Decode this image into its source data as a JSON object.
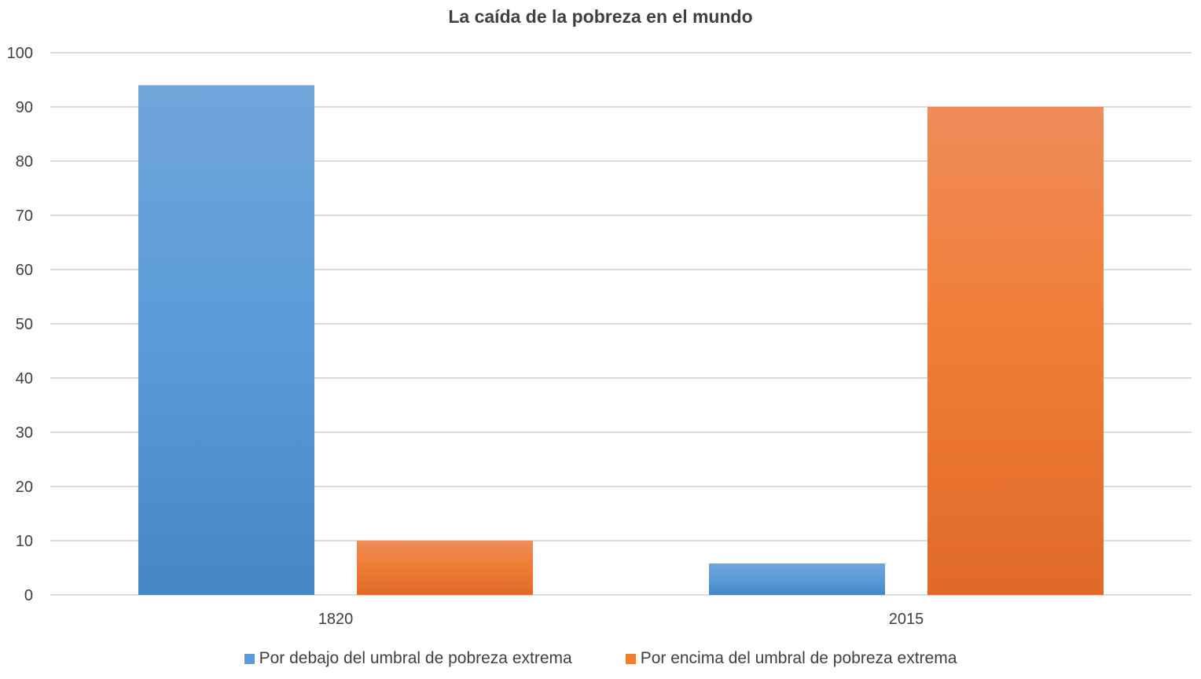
{
  "chart_data": {
    "type": "bar",
    "title": "La caída de la pobreza en el mundo",
    "categories": [
      "1820",
      "2015"
    ],
    "series": [
      {
        "name": "Por debajo del umbral de pobreza extrema",
        "values": [
          94,
          5.8
        ],
        "color": "#5b9bd5"
      },
      {
        "name": "Por encima del umbral de pobreza extrema",
        "values": [
          10,
          90
        ],
        "color": "#ed7d31"
      }
    ],
    "xlabel": "",
    "ylabel": "",
    "ylim": [
      0,
      100
    ],
    "yticks": [
      "0",
      "10",
      "20",
      "30",
      "40",
      "50",
      "60",
      "70",
      "80",
      "90",
      "100"
    ],
    "grid": true,
    "legend": "bottom"
  }
}
